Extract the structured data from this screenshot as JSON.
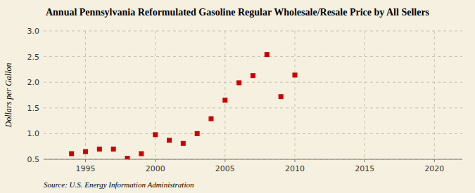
{
  "chart_data": {
    "type": "scatter",
    "title": "Annual Pennsylvania Reformulated Gasoline Regular Wholesale/Resale Price by All Sellers",
    "ylabel": "Dollars per Gallon",
    "source": "Source: U.S. Energy Information Administration",
    "x": [
      1994,
      1995,
      1996,
      1997,
      1998,
      1999,
      2000,
      2001,
      2002,
      2003,
      2004,
      2005,
      2006,
      2007,
      2008,
      2009,
      2010
    ],
    "values": [
      0.61,
      0.65,
      0.7,
      0.7,
      0.52,
      0.61,
      0.98,
      0.87,
      0.81,
      1.0,
      1.29,
      1.65,
      1.99,
      2.13,
      2.54,
      1.72,
      2.14
    ],
    "xlim": [
      1992,
      2022
    ],
    "ylim": [
      0.5,
      3.0
    ],
    "xticks": [
      1995,
      2000,
      2005,
      2010,
      2015,
      2020
    ],
    "yticks": [
      0.5,
      {
        "value": 1.0,
        "label": "1.0"
      },
      1.5,
      {
        "value": 2.0,
        "label": "2.0"
      },
      2.5,
      {
        "value": 3.0,
        "label": "3.0"
      }
    ],
    "color": "#cc0000",
    "marker": "square",
    "grid": true
  }
}
